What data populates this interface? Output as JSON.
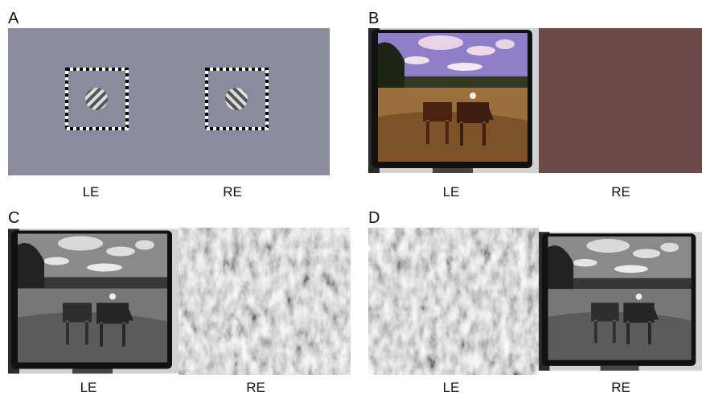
{
  "panels": [
    {
      "label": "A",
      "left": "LE",
      "right": "RE"
    },
    {
      "label": "B",
      "left": "LE",
      "right": "RE"
    },
    {
      "label": "C",
      "left": "LE",
      "right": "RE"
    },
    {
      "label": "D",
      "left": "LE",
      "right": "RE"
    }
  ]
}
